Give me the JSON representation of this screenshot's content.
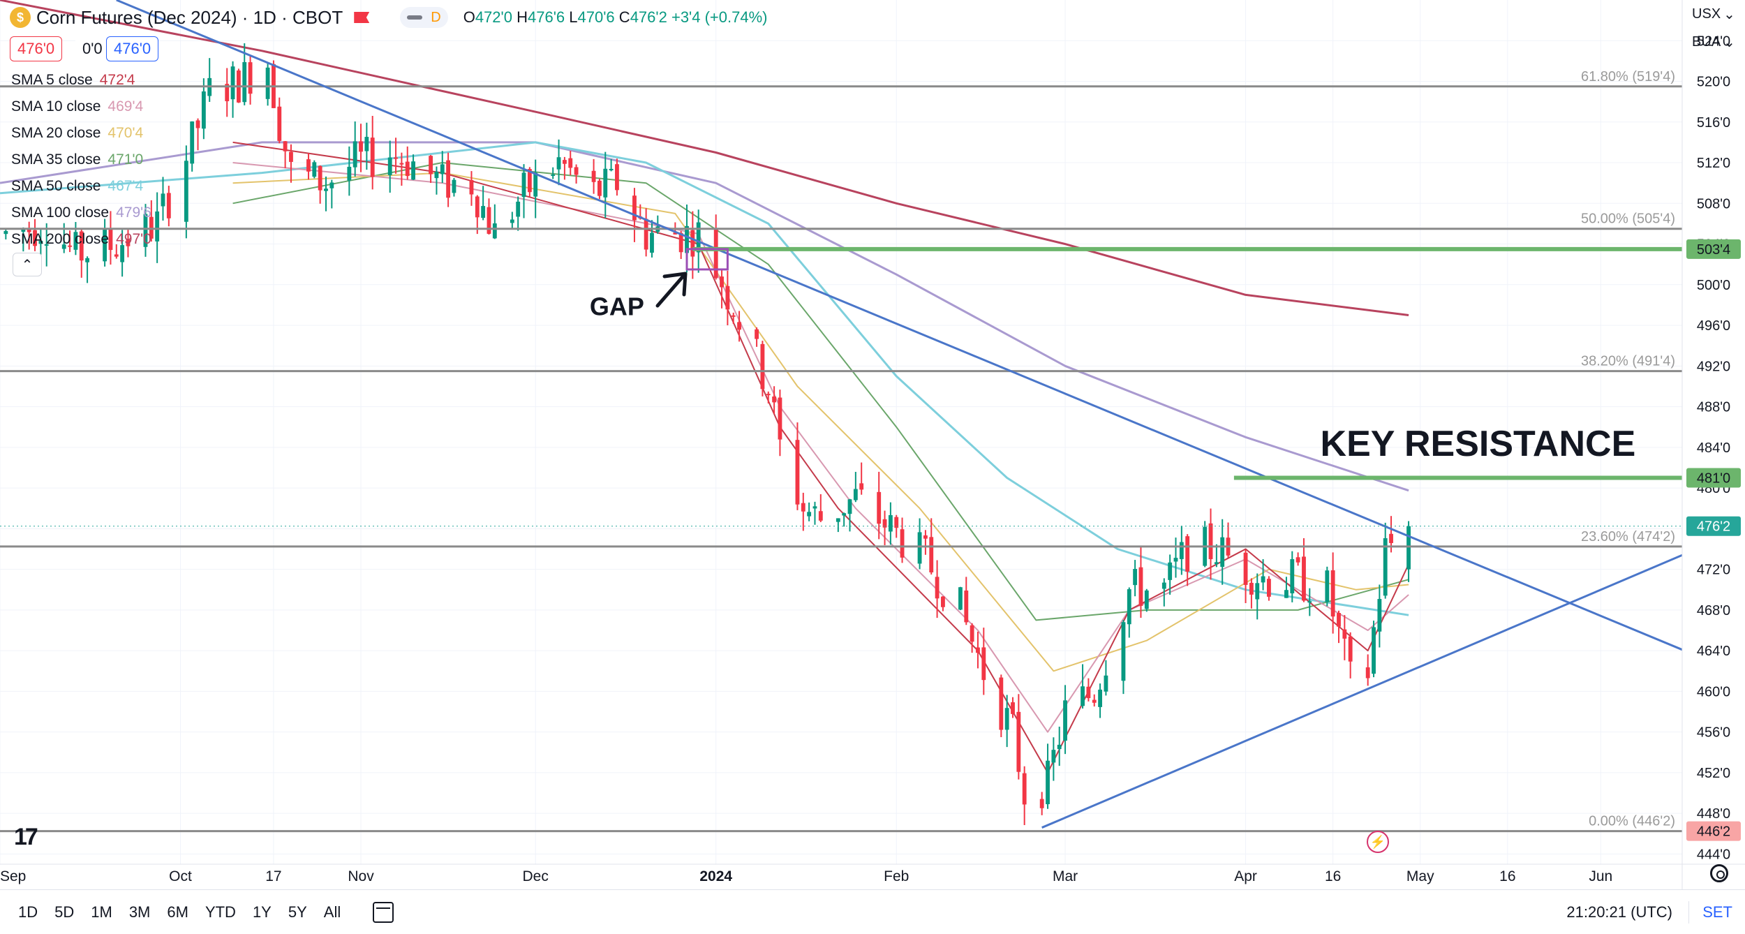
{
  "header": {
    "symbol_title": "Corn Futures (Dec 2024) · 1D · CBOT",
    "d_badge": "D",
    "ohlc": {
      "o_label": "O",
      "o": "472'0",
      "h_label": "H",
      "h": "476'6",
      "l_label": "L",
      "l": "470'6",
      "c_label": "C",
      "c": "476'2",
      "change": "+3'4 (+0.74%)"
    },
    "sell_price": "476'0",
    "spread": "0'0",
    "buy_price": "476'0"
  },
  "indicators": [
    {
      "label": "SMA 5 close",
      "value": "472'4",
      "color": "#c43a4a"
    },
    {
      "label": "SMA 10 close",
      "value": "469'4",
      "color": "#d898b0"
    },
    {
      "label": "SMA 20 close",
      "value": "470'4",
      "color": "#e3c36b"
    },
    {
      "label": "SMA 35 close",
      "value": "471'0",
      "color": "#6aa66a"
    },
    {
      "label": "SMA 50 close",
      "value": "467'4",
      "color": "#7dcfdc"
    },
    {
      "label": "SMA 100 close",
      "value": "479'6",
      "color": "#a99ad0"
    },
    {
      "label": "SMA 200 close",
      "value": "497'0",
      "color": "#b8435e"
    }
  ],
  "axis_top": {
    "currency": "USX",
    "unit": "BUA"
  },
  "bottom_bar": {
    "ranges": [
      "1D",
      "5D",
      "1M",
      "3M",
      "6M",
      "YTD",
      "1Y",
      "5Y",
      "All"
    ],
    "clock": "21:20:21 (UTC)",
    "set_label": "SET"
  },
  "colors": {
    "up": "#089981",
    "down": "#f23645",
    "trendline": "#4a76c9",
    "green_level": "#6cb56c",
    "fib": "#808080"
  },
  "chart_data": {
    "type": "candlestick",
    "title": "Corn Futures (Dec 2024) · 1D · CBOT",
    "ylim": [
      443,
      528
    ],
    "y_ticks": [
      444,
      448,
      452,
      456,
      460,
      464,
      468,
      472,
      476,
      480,
      484,
      488,
      492,
      496,
      500,
      504,
      508,
      512,
      516,
      520,
      524
    ],
    "y_tick_labels": [
      "444'0",
      "448'0",
      "452'0",
      "456'0",
      "460'0",
      "464'0",
      "468'0",
      "472'0",
      "476'0",
      "480'0",
      "484'0",
      "488'0",
      "492'0",
      "496'0",
      "500'0",
      "504'0",
      "508'0",
      "512'0",
      "516'0",
      "520'0",
      "524'0"
    ],
    "x_labels": [
      {
        "text": "Sep",
        "date": "2023-08-31"
      },
      {
        "text": "Oct",
        "date": "2023-10-01"
      },
      {
        "text": "17",
        "date": "2023-10-17"
      },
      {
        "text": "Nov",
        "date": "2023-11-01"
      },
      {
        "text": "Dec",
        "date": "2023-12-01"
      },
      {
        "text": "2024",
        "date": "2024-01-01"
      },
      {
        "text": "Feb",
        "date": "2024-02-01"
      },
      {
        "text": "Mar",
        "date": "2024-03-01"
      },
      {
        "text": "Apr",
        "date": "2024-04-01"
      },
      {
        "text": "16",
        "date": "2024-04-16"
      },
      {
        "text": "May",
        "date": "2024-05-01"
      },
      {
        "text": "16",
        "date": "2024-05-16"
      },
      {
        "text": "Jun",
        "date": "2024-06-01"
      }
    ],
    "x_range": [
      "2023-08-31",
      "2024-06-15"
    ],
    "candles_anchors": [
      [
        "2023-09-01",
        505
      ],
      [
        "2023-09-08",
        506
      ],
      [
        "2023-09-13",
        503
      ],
      [
        "2023-09-20",
        504
      ],
      [
        "2023-09-27",
        506
      ],
      [
        "2023-10-03",
        514
      ],
      [
        "2023-10-06",
        519
      ],
      [
        "2023-10-11",
        520
      ],
      [
        "2023-10-16",
        522
      ],
      [
        "2023-10-18",
        516
      ],
      [
        "2023-10-20",
        511
      ],
      [
        "2023-10-26",
        510
      ],
      [
        "2023-10-31",
        512
      ],
      [
        "2023-11-06",
        513
      ],
      [
        "2023-11-10",
        512
      ],
      [
        "2023-11-15",
        510
      ],
      [
        "2023-11-20",
        510
      ],
      [
        "2023-11-24",
        505
      ],
      [
        "2023-11-29",
        509
      ],
      [
        "2023-12-05",
        512
      ],
      [
        "2023-12-11",
        509
      ],
      [
        "2023-12-15",
        510
      ],
      [
        "2023-12-20",
        505
      ],
      [
        "2023-12-27",
        505
      ],
      [
        "2023-12-29",
        505
      ],
      [
        "2024-01-04",
        498
      ],
      [
        "2024-01-10",
        490
      ],
      [
        "2024-01-12",
        484
      ],
      [
        "2024-01-16",
        478
      ],
      [
        "2024-01-19",
        477
      ],
      [
        "2024-01-25",
        479
      ],
      [
        "2024-01-31",
        476
      ],
      [
        "2024-02-06",
        473
      ],
      [
        "2024-02-12",
        468
      ],
      [
        "2024-02-16",
        462
      ],
      [
        "2024-02-21",
        456
      ],
      [
        "2024-02-23",
        450
      ],
      [
        "2024-02-27",
        451
      ],
      [
        "2024-03-01",
        458
      ],
      [
        "2024-03-06",
        460
      ],
      [
        "2024-03-12",
        470
      ],
      [
        "2024-03-18",
        470
      ],
      [
        "2024-03-22",
        474
      ],
      [
        "2024-03-27",
        474
      ],
      [
        "2024-04-01",
        472
      ],
      [
        "2024-04-05",
        471
      ],
      [
        "2024-04-10",
        471
      ],
      [
        "2024-04-15",
        470
      ],
      [
        "2024-04-19",
        461
      ],
      [
        "2024-04-22",
        462
      ],
      [
        "2024-04-25",
        474
      ],
      [
        "2024-04-29",
        476.25
      ]
    ],
    "moving_averages": [
      {
        "name": "SMA 200 close",
        "color": "#b8435e",
        "points": [
          [
            "2023-08-31",
            528
          ],
          [
            "2023-10-15",
            523
          ],
          [
            "2023-12-01",
            517
          ],
          [
            "2024-01-01",
            513
          ],
          [
            "2024-02-01",
            508
          ],
          [
            "2024-03-01",
            504
          ],
          [
            "2024-04-01",
            499
          ],
          [
            "2024-04-29",
            497
          ]
        ]
      },
      {
        "name": "SMA 100 close",
        "color": "#a99ad0",
        "points": [
          [
            "2023-08-31",
            510
          ],
          [
            "2023-10-15",
            514
          ],
          [
            "2023-12-01",
            514
          ],
          [
            "2024-01-01",
            510
          ],
          [
            "2024-02-01",
            501
          ],
          [
            "2024-03-01",
            492
          ],
          [
            "2024-04-01",
            485
          ],
          [
            "2024-04-29",
            479.75
          ]
        ]
      },
      {
        "name": "SMA 50 close",
        "color": "#7dcfdc",
        "points": [
          [
            "2023-08-31",
            509
          ],
          [
            "2023-10-15",
            511
          ],
          [
            "2023-12-01",
            514
          ],
          [
            "2023-12-20",
            512
          ],
          [
            "2024-01-10",
            506
          ],
          [
            "2024-02-01",
            491
          ],
          [
            "2024-02-20",
            481
          ],
          [
            "2024-03-10",
            474
          ],
          [
            "2024-04-01",
            470
          ],
          [
            "2024-04-29",
            467.5
          ]
        ]
      },
      {
        "name": "SMA 35 close",
        "color": "#6aa66a",
        "points": [
          [
            "2023-10-10",
            508
          ],
          [
            "2023-11-15",
            512
          ],
          [
            "2023-12-20",
            510
          ],
          [
            "2024-01-10",
            502
          ],
          [
            "2024-02-01",
            486
          ],
          [
            "2024-02-25",
            467
          ],
          [
            "2024-03-15",
            468
          ],
          [
            "2024-04-10",
            468
          ],
          [
            "2024-04-29",
            471
          ]
        ]
      },
      {
        "name": "SMA 20 close",
        "color": "#e3c36b",
        "points": [
          [
            "2023-10-10",
            510
          ],
          [
            "2023-11-15",
            511
          ],
          [
            "2023-12-25",
            507
          ],
          [
            "2024-01-15",
            490
          ],
          [
            "2024-02-05",
            478
          ],
          [
            "2024-02-28",
            462
          ],
          [
            "2024-03-15",
            465
          ],
          [
            "2024-04-05",
            472
          ],
          [
            "2024-04-20",
            470
          ],
          [
            "2024-04-29",
            470.5
          ]
        ]
      },
      {
        "name": "SMA 10 close",
        "color": "#d898b0",
        "points": [
          [
            "2023-10-10",
            512
          ],
          [
            "2023-11-15",
            510
          ],
          [
            "2023-12-29",
            505
          ],
          [
            "2024-01-12",
            488
          ],
          [
            "2024-01-25",
            478
          ],
          [
            "2024-02-15",
            466
          ],
          [
            "2024-02-27",
            456
          ],
          [
            "2024-03-12",
            468
          ],
          [
            "2024-04-01",
            473
          ],
          [
            "2024-04-22",
            466
          ],
          [
            "2024-04-29",
            469.5
          ]
        ]
      },
      {
        "name": "SMA 5 close",
        "color": "#c43a4a",
        "points": [
          [
            "2023-10-10",
            514
          ],
          [
            "2023-11-15",
            511
          ],
          [
            "2023-12-29",
            504
          ],
          [
            "2024-01-12",
            486
          ],
          [
            "2024-01-22",
            478
          ],
          [
            "2024-02-15",
            464
          ],
          [
            "2024-02-27",
            452
          ],
          [
            "2024-03-12",
            468
          ],
          [
            "2024-04-01",
            474
          ],
          [
            "2024-04-22",
            464
          ],
          [
            "2024-04-29",
            472.5
          ]
        ]
      }
    ],
    "fib_levels": [
      {
        "label": "61.80% (519'4)",
        "value": 519.5
      },
      {
        "label": "50.00% (505'4)",
        "value": 505.5
      },
      {
        "label": "38.20% (491'4)",
        "value": 491.5
      },
      {
        "label": "23.60% (474'2)",
        "value": 474.25
      },
      {
        "label": "0.00% (446'2)",
        "value": 446.25
      }
    ],
    "trendlines": [
      {
        "from": [
          "2023-09-20",
          528
        ],
        "to": [
          "2024-06-15",
          464.1
        ]
      },
      {
        "from": [
          "2024-02-26",
          446.6
        ],
        "to": [
          "2024-06-15",
          473.4
        ]
      }
    ],
    "horizontal_levels": [
      {
        "value": 503.5,
        "from": "2023-12-28",
        "label": "503'4"
      },
      {
        "value": 481,
        "from": "2024-03-30",
        "label": "481'0"
      }
    ],
    "gap_box": {
      "x": [
        "2023-12-27",
        "2024-01-03"
      ],
      "y": [
        501.5,
        503.5
      ]
    },
    "price_tags": [
      {
        "value": 476.25,
        "label": "476'2",
        "bg": "#26a69a"
      },
      {
        "value": 446.25,
        "label": "446'2",
        "bg": "#f8a5a5"
      }
    ],
    "annotations": [
      {
        "text": "GAP",
        "date": "2023-12-15",
        "y": 497
      },
      {
        "text": "KEY RESISTANCE",
        "date": "2024-06-07",
        "y": 484
      }
    ]
  }
}
